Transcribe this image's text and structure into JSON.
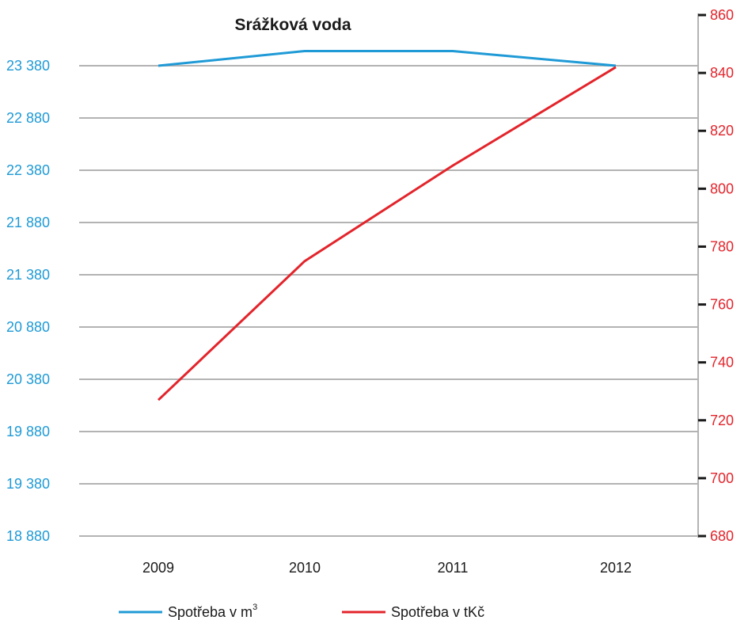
{
  "chart_data": {
    "type": "line",
    "title": "Srážková voda",
    "categories": [
      "2009",
      "2010",
      "2011",
      "2012"
    ],
    "y_left": {
      "ticks": [
        "23 380",
        "22 880",
        "22 380",
        "21 880",
        "21 380",
        "20 880",
        "20 380",
        "19 880",
        "19 380",
        "18 880"
      ],
      "tick_values": [
        23380,
        22880,
        22380,
        21880,
        21380,
        20880,
        20380,
        19880,
        19380,
        18880
      ],
      "ylim": [
        18880,
        23380
      ],
      "color": "#1f9ad6"
    },
    "y_right": {
      "ticks": [
        "860",
        "840",
        "820",
        "800",
        "780",
        "760",
        "740",
        "720",
        "700",
        "680"
      ],
      "tick_values": [
        860,
        840,
        820,
        800,
        780,
        760,
        740,
        720,
        700,
        680
      ],
      "ylim": [
        680,
        860
      ],
      "color": "#e3242b"
    },
    "series": [
      {
        "name": "Spotřeba v m",
        "name_sup": "3",
        "axis": "left",
        "color": "#1f9ad6",
        "values": [
          23380,
          23520,
          23520,
          23380
        ]
      },
      {
        "name": "Spotřeba v tKč",
        "axis": "right",
        "color": "#e3242b",
        "values": [
          727,
          775,
          808,
          842
        ]
      }
    ],
    "grid": true,
    "legend_position": "bottom"
  }
}
